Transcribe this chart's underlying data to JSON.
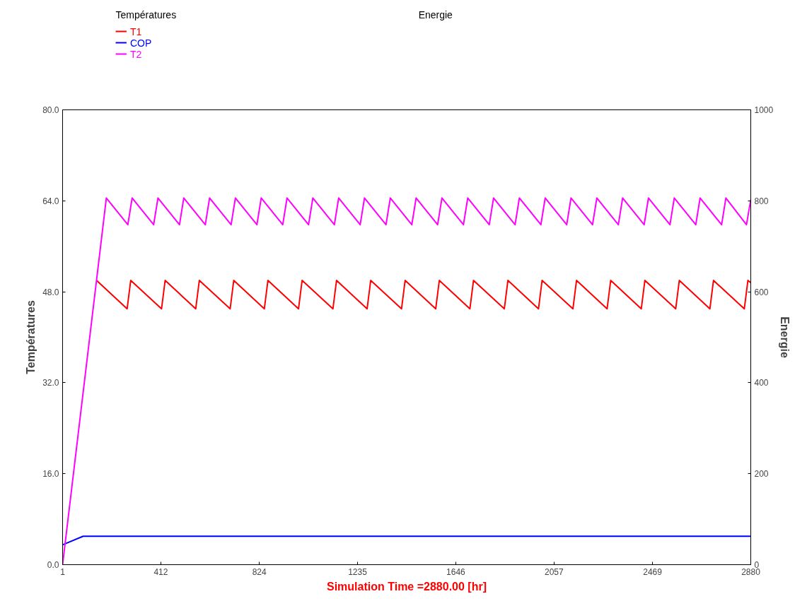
{
  "chart_data": {
    "type": "line",
    "xlabel": "Simulation Time =2880.00 [hr]",
    "ylabel": "Températures",
    "y2label": "Energie",
    "legend_title": "Températures",
    "annotations": [
      "Energie"
    ],
    "legend": "top left",
    "grid": false,
    "xlim": [
      1,
      2880
    ],
    "xticks": [
      1,
      412,
      824,
      1235,
      1646,
      2057,
      2469,
      2880
    ],
    "ylim": [
      0,
      80
    ],
    "yticks": [
      {
        "value": 0,
        "label": "0.0"
      },
      {
        "value": 16,
        "label": "16.0"
      },
      {
        "value": 32,
        "label": "32.0"
      },
      {
        "value": 48,
        "label": "48.0"
      },
      {
        "value": 64,
        "label": "64.0"
      },
      {
        "value": 80,
        "label": "80.0"
      }
    ],
    "y2lim": [
      0,
      1000
    ],
    "y2ticks": [
      0,
      200,
      400,
      600,
      800,
      1000
    ],
    "series": [
      {
        "name": "T1",
        "color": "#ff0000",
        "x": [
          143,
          271,
          286,
          415,
          430,
          558,
          573,
          702,
          717,
          845,
          860,
          988,
          1003,
          1132,
          1147,
          1275,
          1290,
          1419,
          1434,
          1562,
          1577,
          1705,
          1720,
          1849,
          1864,
          1992,
          2007,
          2136,
          2151,
          2279,
          2294,
          2422,
          2437,
          2566,
          2581,
          2709,
          2724,
          2853,
          2868,
          2880
        ],
        "values": [
          50,
          45,
          50,
          45,
          50,
          45,
          50,
          45,
          50,
          45,
          50,
          45,
          50,
          45,
          50,
          45,
          50,
          45,
          50,
          45,
          50,
          45,
          50,
          45,
          50,
          45,
          50,
          45,
          50,
          45,
          50,
          45,
          50,
          45,
          50,
          45,
          50,
          45,
          50,
          49.6
        ]
      },
      {
        "name": "COP",
        "color": "#0000ff",
        "x": [
          1,
          87,
          2880
        ],
        "values": [
          3.5,
          5,
          5
        ]
      },
      {
        "name": "T2",
        "color": "#ff00ff",
        "x": [
          1,
          184,
          274,
          292,
          382,
          400,
          490,
          508,
          598,
          616,
          706,
          724,
          814,
          832,
          922,
          940,
          1030,
          1048,
          1138,
          1156,
          1246,
          1264,
          1354,
          1372,
          1462,
          1480,
          1570,
          1588,
          1678,
          1696,
          1786,
          1804,
          1894,
          1912,
          2002,
          2020,
          2110,
          2128,
          2218,
          2236,
          2326,
          2344,
          2434,
          2452,
          2542,
          2560,
          2650,
          2668,
          2758,
          2776,
          2862,
          2880
        ],
        "values": [
          0,
          64.5,
          59.8,
          64.5,
          59.8,
          64.5,
          59.8,
          64.5,
          59.8,
          64.5,
          59.8,
          64.5,
          59.8,
          64.5,
          59.8,
          64.5,
          59.8,
          64.5,
          59.8,
          64.5,
          59.8,
          64.5,
          59.8,
          64.5,
          59.8,
          64.5,
          59.8,
          64.5,
          59.8,
          64.5,
          59.8,
          64.5,
          59.8,
          64.5,
          59.8,
          64.5,
          59.8,
          64.5,
          59.8,
          64.5,
          59.8,
          64.5,
          59.8,
          64.5,
          59.8,
          64.5,
          59.8,
          64.5,
          59.8,
          64.5,
          59.8,
          64.2
        ]
      }
    ]
  }
}
